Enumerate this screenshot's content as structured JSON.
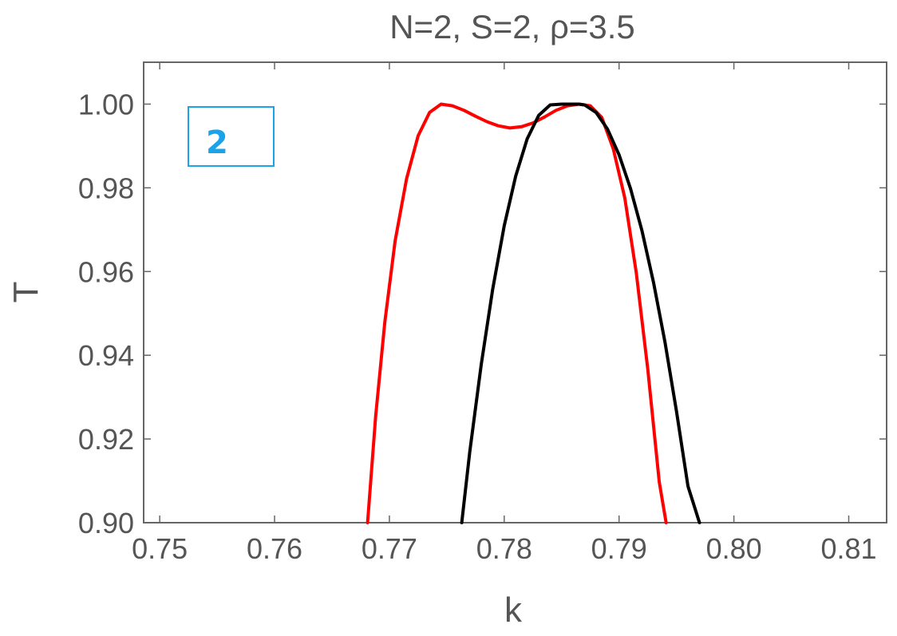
{
  "chart_data": {
    "type": "line",
    "title": "N=2, S=2, ρ=3.5",
    "xlabel": "k",
    "ylabel": "T",
    "xlim": [
      0.7486,
      0.8133
    ],
    "ylim": [
      0.9,
      1.01
    ],
    "x_ticks": [
      "0.75",
      "0.76",
      "0.77",
      "0.78",
      "0.79",
      "0.80",
      "0.81"
    ],
    "y_ticks": [
      "0.90",
      "0.92",
      "0.94",
      "0.96",
      "0.98",
      "1.00"
    ],
    "grid": false,
    "series": [
      {
        "color": "#ff0000",
        "x": [
          0.7681,
          0.7688,
          0.7696,
          0.7705,
          0.7715,
          0.7725,
          0.7735,
          0.7745,
          0.7755,
          0.7765,
          0.7775,
          0.7785,
          0.7795,
          0.7805,
          0.7815,
          0.7825,
          0.7835,
          0.7845,
          0.7855,
          0.7865,
          0.7875,
          0.7885,
          0.7895,
          0.7905,
          0.7915,
          0.7925,
          0.7935,
          0.7941
        ],
        "y": [
          0.9,
          0.9254,
          0.9479,
          0.9673,
          0.9822,
          0.9924,
          0.998,
          1.0,
          0.9996,
          0.9985,
          0.9971,
          0.9958,
          0.9948,
          0.9943,
          0.9946,
          0.9955,
          0.9969,
          0.9985,
          0.9996,
          1.0,
          0.9996,
          0.9968,
          0.9893,
          0.9776,
          0.9597,
          0.9367,
          0.9097,
          0.9
        ]
      },
      {
        "color": "#000000",
        "x": [
          0.7763,
          0.777,
          0.778,
          0.779,
          0.78,
          0.781,
          0.782,
          0.783,
          0.784,
          0.785,
          0.786,
          0.7865,
          0.787,
          0.788,
          0.789,
          0.79,
          0.791,
          0.792,
          0.793,
          0.794,
          0.795,
          0.796,
          0.797
        ],
        "y": [
          0.9,
          0.917,
          0.9379,
          0.9558,
          0.9709,
          0.9828,
          0.9917,
          0.9973,
          0.9998,
          1.0,
          1.0,
          1.0,
          0.9998,
          0.998,
          0.994,
          0.9879,
          0.9798,
          0.9697,
          0.9574,
          0.9431,
          0.9266,
          0.9087,
          0.9
        ]
      }
    ],
    "annotation_box": "2"
  },
  "colors": {
    "frame": "#666666",
    "text": "#555555",
    "badge_border": "#1aa3e8",
    "badge_text": "#1aa3e8"
  }
}
